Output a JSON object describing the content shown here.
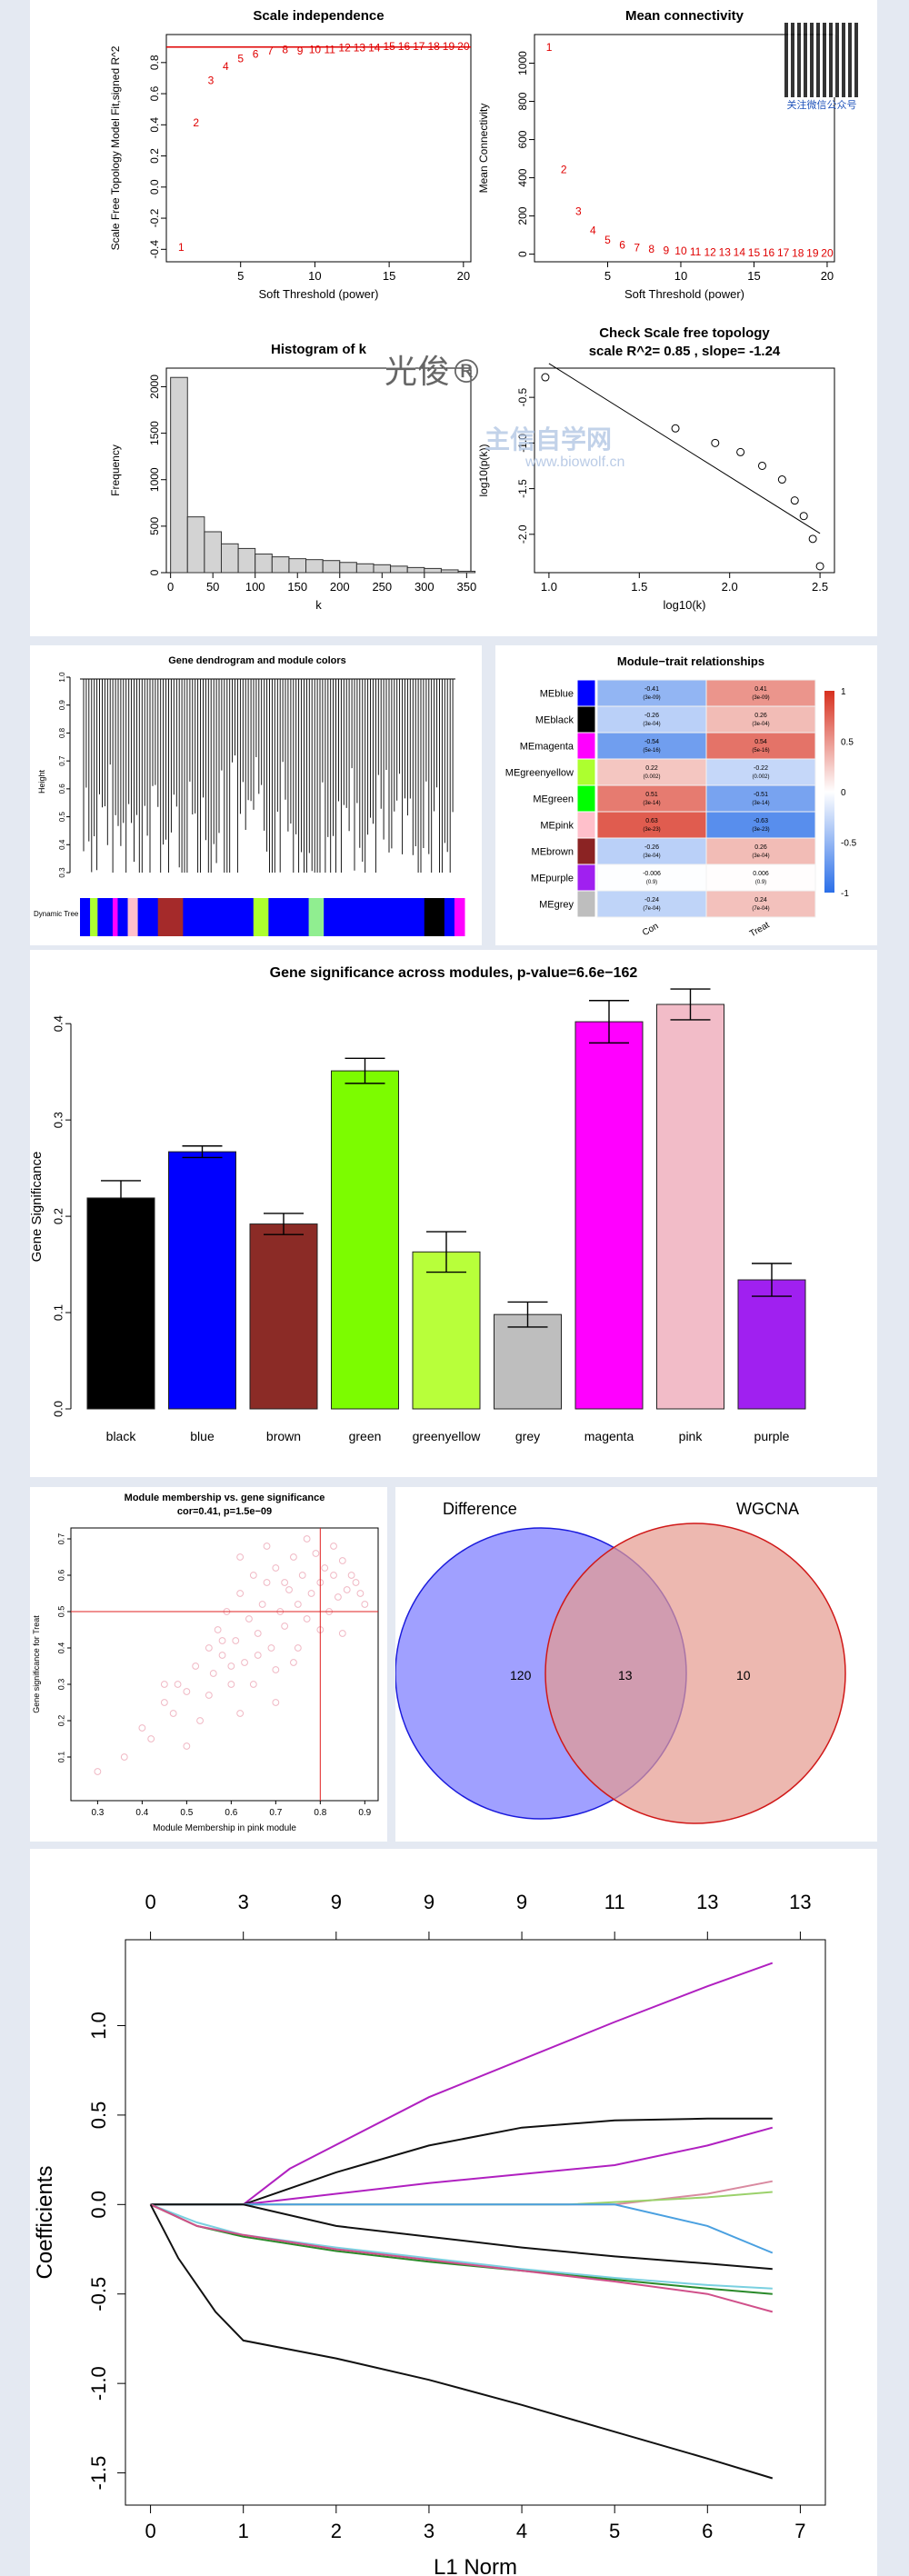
{
  "wgcna_panel": {
    "scale_independence": {
      "type": "scatter",
      "title": "Scale independence",
      "xlabel": "Soft Threshold (power)",
      "ylabel": "Scale Free Topology Model Fit,signed R^2",
      "x_ticks": [
        "5",
        "10",
        "15",
        "20"
      ],
      "y_ticks": [
        "-0.4",
        "-0.2",
        "0.0",
        "0.2",
        "0.4",
        "0.6",
        "0.8"
      ],
      "xlim": [
        0,
        20.5
      ],
      "ylim": [
        -0.48,
        0.98
      ],
      "threshold_line": 0.9,
      "x": [
        1,
        2,
        3,
        4,
        5,
        6,
        7,
        8,
        9,
        10,
        11,
        12,
        13,
        14,
        15,
        16,
        17,
        18,
        19,
        20
      ],
      "y": [
        -0.39,
        0.41,
        0.68,
        0.77,
        0.82,
        0.85,
        0.87,
        0.88,
        0.87,
        0.88,
        0.88,
        0.89,
        0.89,
        0.89,
        0.9,
        0.9,
        0.9,
        0.9,
        0.9,
        0.9
      ],
      "point_labels": [
        "1",
        "2",
        "3",
        "4",
        "5",
        "6",
        "7",
        "8",
        "9",
        "10",
        "11",
        "12",
        "13",
        "14",
        "15",
        "16",
        "17",
        "18",
        "19",
        "20"
      ]
    },
    "mean_connectivity": {
      "type": "scatter",
      "title": "Mean connectivity",
      "xlabel": "Soft Threshold (power)",
      "ylabel": "Mean Connectivity",
      "x_ticks": [
        "5",
        "10",
        "15",
        "20"
      ],
      "y_ticks": [
        "0",
        "200",
        "400",
        "600",
        "800",
        "1000"
      ],
      "xlim": [
        0,
        20.5
      ],
      "ylim": [
        -40,
        1150
      ],
      "x": [
        1,
        2,
        3,
        4,
        5,
        6,
        7,
        8,
        9,
        10,
        11,
        12,
        13,
        14,
        15,
        16,
        17,
        18,
        19,
        20
      ],
      "y": [
        1080,
        440,
        220,
        120,
        70,
        45,
        30,
        22,
        16,
        12,
        9,
        7,
        6,
        5,
        4,
        3,
        3,
        2,
        2,
        2
      ],
      "point_labels": [
        "1",
        "2",
        "3",
        "4",
        "5",
        "6",
        "7",
        "8",
        "9",
        "10",
        "11",
        "12",
        "13",
        "14",
        "15",
        "16",
        "17",
        "18",
        "19",
        "20"
      ]
    },
    "histogram_k": {
      "type": "bar",
      "title": "Histogram of k",
      "xlabel": "k",
      "ylabel": "Frequency",
      "x_ticks": [
        "0",
        "50",
        "100",
        "150",
        "200",
        "250",
        "300",
        "350"
      ],
      "y_ticks": [
        "0",
        "500",
        "1000",
        "1500",
        "2000"
      ],
      "xlim": [
        -5,
        355
      ],
      "ylim": [
        0,
        2200
      ],
      "bin_width": 20,
      "bin_starts": [
        0,
        20,
        40,
        60,
        80,
        100,
        120,
        140,
        160,
        180,
        200,
        220,
        240,
        260,
        280,
        300,
        320,
        340
      ],
      "values": [
        2100,
        600,
        440,
        310,
        260,
        200,
        170,
        150,
        140,
        130,
        110,
        95,
        85,
        70,
        55,
        45,
        30,
        15
      ]
    },
    "scale_free": {
      "type": "scatter",
      "title": "Check Scale free topology",
      "subtitle": "scale R^2= 0.85 , slope= -1.24",
      "xlabel": "log10(k)",
      "ylabel": "log10(p(k))",
      "x_ticks": [
        "1.0",
        "1.5",
        "2.0",
        "2.5"
      ],
      "y_ticks": [
        "-2.0",
        "-1.5",
        "-1.0",
        "-0.5"
      ],
      "xlim": [
        0.92,
        2.58
      ],
      "ylim": [
        -2.42,
        -0.18
      ],
      "x": [
        0.98,
        1.7,
        1.92,
        2.06,
        2.18,
        2.29,
        2.36,
        2.41,
        2.46,
        2.5
      ],
      "y": [
        -0.28,
        -0.84,
        -1.0,
        -1.1,
        -1.25,
        -1.4,
        -1.63,
        -1.8,
        -2.05,
        -2.35
      ],
      "fit_line": {
        "x": [
          1.0,
          2.5
        ],
        "y": [
          -0.13,
          -1.99
        ]
      }
    },
    "watermark_name": "光俊®",
    "watermark_site": "主信自学网",
    "watermark_url": "www.biowolf.cn",
    "qr_caption": "关注微信公众号"
  },
  "dendrogram_panel": {
    "title": "Gene dendrogram and module colors",
    "ylabel": "Height",
    "y_ticks": [
      "0.3",
      "0.4",
      "0.5",
      "0.6",
      "0.7",
      "0.8",
      "0.9",
      "1.0"
    ],
    "row_label": "Dynamic Tree Cut",
    "color_strip": [
      {
        "color": "#0000ff",
        "width": 2
      },
      {
        "color": "#adff2f",
        "width": 1.5
      },
      {
        "color": "#0000ff",
        "width": 3
      },
      {
        "color": "#ff00ff",
        "width": 1
      },
      {
        "color": "#0000ff",
        "width": 2
      },
      {
        "color": "#ffc0cb",
        "width": 2
      },
      {
        "color": "#0000ff",
        "width": 4
      },
      {
        "color": "#a52a2a",
        "width": 5
      },
      {
        "color": "#0000ff",
        "width": 14
      },
      {
        "color": "#adff2f",
        "width": 3
      },
      {
        "color": "#0000ff",
        "width": 8
      },
      {
        "color": "#90ee90",
        "width": 3
      },
      {
        "color": "#0000ff",
        "width": 20
      },
      {
        "color": "#000000",
        "width": 4
      },
      {
        "color": "#0000ff",
        "width": 2
      },
      {
        "color": "#ff00ff",
        "width": 2
      }
    ]
  },
  "module_trait_panel": {
    "type": "heatmap",
    "title": "Module−trait relationships",
    "columns": [
      "Con",
      "Treat"
    ],
    "rows": [
      {
        "name": "MEblue",
        "color": "#0000ff",
        "values": [
          -0.41,
          0.41
        ],
        "labels": [
          "-0.41\n(3e-09)",
          "0.41\n(3e-09)"
        ]
      },
      {
        "name": "MEblack",
        "color": "#000000",
        "values": [
          -0.26,
          0.26
        ],
        "labels": [
          "-0.26\n(3e-04)",
          "0.26\n(3e-04)"
        ]
      },
      {
        "name": "MEmagenta",
        "color": "#ff00ff",
        "values": [
          -0.54,
          0.54
        ],
        "labels": [
          "-0.54\n(5e-16)",
          "0.54\n(5e-16)"
        ]
      },
      {
        "name": "MEgreenyellow",
        "color": "#adff2f",
        "values": [
          0.22,
          -0.22
        ],
        "labels": [
          "0.22\n(0.002)",
          "-0.22\n(0.002)"
        ]
      },
      {
        "name": "MEgreen",
        "color": "#00ff00",
        "values": [
          0.51,
          -0.51
        ],
        "labels": [
          "0.51\n(3e-14)",
          "-0.51\n(3e-14)"
        ]
      },
      {
        "name": "MEpink",
        "color": "#ffc0cb",
        "values": [
          0.63,
          -0.63
        ],
        "labels": [
          "0.63\n(3e-23)",
          "-0.63\n(3e-23)"
        ]
      },
      {
        "name": "MEbrown",
        "color": "#8b2323",
        "values": [
          -0.26,
          0.26
        ],
        "labels": [
          "-0.26\n(3e-04)",
          "0.26\n(3e-04)"
        ]
      },
      {
        "name": "MEpurple",
        "color": "#a020f0",
        "values": [
          -0.006,
          0.006
        ],
        "labels": [
          "-0.006\n(0.9)",
          "0.006\n(0.9)"
        ]
      },
      {
        "name": "MEgrey",
        "color": "#bebebe",
        "values": [
          -0.24,
          0.24
        ],
        "labels": [
          "-0.24\n(7e-04)",
          "0.24\n(7e-04)"
        ]
      }
    ],
    "scale_ticks": [
      "1",
      "0.5",
      "0",
      "-0.5",
      "-1"
    ],
    "scale_colors": {
      "high": "#d7301f",
      "mid": "#ffffff",
      "low": "#2b6fe8"
    }
  },
  "gene_significance_panel": {
    "type": "bar",
    "title": "Gene significance across modules, p-value=6.6e−162",
    "ylabel": "Gene Significance",
    "y_ticks": [
      "0.0",
      "0.1",
      "0.2",
      "0.3",
      "0.4"
    ],
    "ylim": [
      0,
      0.42
    ],
    "categories": [
      "black",
      "blue",
      "brown",
      "green",
      "greenyellow",
      "grey",
      "magenta",
      "pink",
      "purple"
    ],
    "values": [
      0.219,
      0.267,
      0.192,
      0.351,
      0.163,
      0.098,
      0.402,
      0.42,
      0.134
    ],
    "errors": [
      0.018,
      0.006,
      0.011,
      0.013,
      0.021,
      0.013,
      0.022,
      0.016,
      0.017
    ],
    "colors": [
      "#000000",
      "#0000ff",
      "#8b2b26",
      "#7cfc00",
      "#b8ff3a",
      "#bebebe",
      "#ff00ff",
      "#f2bcc8",
      "#a020f0"
    ]
  },
  "membership_panel": {
    "type": "scatter",
    "title": "Module membership vs. gene significance",
    "subtitle": "cor=0.41, p=1.5e−09",
    "xlabel": "Module Membership in pink module",
    "ylabel": "Gene significance for  Treat",
    "x_ticks": [
      "0.3",
      "0.4",
      "0.5",
      "0.6",
      "0.7",
      "0.8",
      "0.9"
    ],
    "y_ticks": [
      "0.1",
      "0.2",
      "0.3",
      "0.4",
      "0.5",
      "0.6",
      "0.7"
    ],
    "xlim": [
      0.24,
      0.93
    ],
    "ylim": [
      -0.02,
      0.73
    ],
    "vline": 0.8,
    "hline": 0.5,
    "x": [
      0.3,
      0.36,
      0.4,
      0.42,
      0.45,
      0.47,
      0.48,
      0.5,
      0.52,
      0.53,
      0.55,
      0.56,
      0.57,
      0.58,
      0.59,
      0.6,
      0.61,
      0.62,
      0.63,
      0.64,
      0.65,
      0.66,
      0.67,
      0.68,
      0.69,
      0.7,
      0.71,
      0.72,
      0.73,
      0.74,
      0.75,
      0.76,
      0.77,
      0.78,
      0.79,
      0.8,
      0.81,
      0.82,
      0.83,
      0.84,
      0.85,
      0.86,
      0.87,
      0.88,
      0.89,
      0.9,
      0.55,
      0.6,
      0.65,
      0.7,
      0.75,
      0.8,
      0.85,
      0.62,
      0.68,
      0.72,
      0.77,
      0.83,
      0.58,
      0.66,
      0.74,
      0.5,
      0.45,
      0.62,
      0.7
    ],
    "y": [
      0.06,
      0.1,
      0.18,
      0.15,
      0.25,
      0.22,
      0.3,
      0.28,
      0.35,
      0.2,
      0.4,
      0.33,
      0.45,
      0.38,
      0.5,
      0.3,
      0.42,
      0.55,
      0.36,
      0.48,
      0.6,
      0.44,
      0.52,
      0.58,
      0.4,
      0.62,
      0.5,
      0.46,
      0.56,
      0.65,
      0.52,
      0.6,
      0.48,
      0.55,
      0.66,
      0.58,
      0.62,
      0.5,
      0.6,
      0.54,
      0.64,
      0.56,
      0.6,
      0.58,
      0.55,
      0.52,
      0.27,
      0.35,
      0.3,
      0.34,
      0.4,
      0.45,
      0.44,
      0.65,
      0.68,
      0.58,
      0.7,
      0.68,
      0.42,
      0.38,
      0.36,
      0.13,
      0.3,
      0.22,
      0.25
    ]
  },
  "venn_panel": {
    "type": "venn",
    "left_label": "Difference",
    "right_label": "WGCNA",
    "left_only": "120",
    "overlap": "13",
    "right_only": "10",
    "left_color": "#8080ff",
    "right_color": "#e59a8e"
  },
  "lasso_panel": {
    "type": "line",
    "xlabel": "L1 Norm",
    "ylabel": "Coefficients",
    "x_ticks": [
      "0",
      "1",
      "2",
      "3",
      "4",
      "5",
      "6",
      "7"
    ],
    "y_ticks": [
      "-1.5",
      "-1.0",
      "-0.5",
      "0.0",
      "0.5",
      "1.0"
    ],
    "top_ticks": [
      "0",
      "3",
      "9",
      "9",
      "9",
      "11",
      "13",
      "13"
    ],
    "top_tick_x": [
      0,
      1,
      2,
      3,
      4,
      5,
      6,
      7
    ],
    "xlim": [
      -0.27,
      7.27
    ],
    "ylim": [
      -1.68,
      1.48
    ],
    "series": [
      {
        "color": "#b020c0",
        "x": [
          0,
          1,
          1.5,
          3,
          5,
          6,
          6.7
        ],
        "y": [
          0,
          0,
          0.2,
          0.6,
          1.02,
          1.22,
          1.35
        ]
      },
      {
        "color": "#111111",
        "x": [
          0,
          1,
          2,
          3,
          4,
          5,
          6,
          6.7
        ],
        "y": [
          0,
          0,
          0.18,
          0.33,
          0.43,
          0.47,
          0.48,
          0.48
        ]
      },
      {
        "color": "#b020c0",
        "x": [
          0,
          1,
          2,
          3,
          4,
          5,
          6,
          6.7
        ],
        "y": [
          0,
          0,
          0.06,
          0.12,
          0.17,
          0.22,
          0.33,
          0.43
        ]
      },
      {
        "color": "#d98aa0",
        "x": [
          0,
          1,
          5,
          6,
          6.7
        ],
        "y": [
          0,
          0,
          0,
          0.06,
          0.13
        ]
      },
      {
        "color": "#9bd16b",
        "x": [
          0,
          1,
          4.5,
          6,
          6.7
        ],
        "y": [
          0,
          0,
          0,
          0.04,
          0.07
        ]
      },
      {
        "color": "#4aa0e0",
        "x": [
          0,
          1,
          5,
          6,
          6.7
        ],
        "y": [
          0,
          0,
          0,
          -0.12,
          -0.27
        ]
      },
      {
        "color": "#111111",
        "x": [
          0,
          1,
          2,
          3,
          4,
          5,
          6,
          6.7
        ],
        "y": [
          0,
          0,
          -0.12,
          -0.18,
          -0.24,
          -0.29,
          -0.33,
          -0.36
        ]
      },
      {
        "color": "#7ad0e0",
        "x": [
          0,
          0.5,
          1,
          2,
          3,
          4,
          5,
          6,
          6.7
        ],
        "y": [
          0,
          -0.1,
          -0.17,
          -0.24,
          -0.3,
          -0.36,
          -0.41,
          -0.45,
          -0.47
        ]
      },
      {
        "color": "#2a8a2a",
        "x": [
          0,
          0.5,
          1,
          2,
          3,
          4,
          5,
          6,
          6.7
        ],
        "y": [
          0,
          -0.12,
          -0.18,
          -0.26,
          -0.32,
          -0.37,
          -0.42,
          -0.47,
          -0.5
        ]
      },
      {
        "color": "#d0508a",
        "x": [
          0,
          0.5,
          1,
          2,
          3,
          4,
          5,
          6,
          6.7
        ],
        "y": [
          0,
          -0.12,
          -0.17,
          -0.25,
          -0.31,
          -0.37,
          -0.43,
          -0.5,
          -0.6
        ]
      },
      {
        "color": "#111111",
        "x": [
          0,
          0.3,
          0.7,
          1,
          2,
          3,
          4,
          5,
          6,
          6.7
        ],
        "y": [
          0,
          -0.3,
          -0.6,
          -0.76,
          -0.86,
          -0.98,
          -1.12,
          -1.27,
          -1.42,
          -1.53
        ]
      }
    ]
  }
}
